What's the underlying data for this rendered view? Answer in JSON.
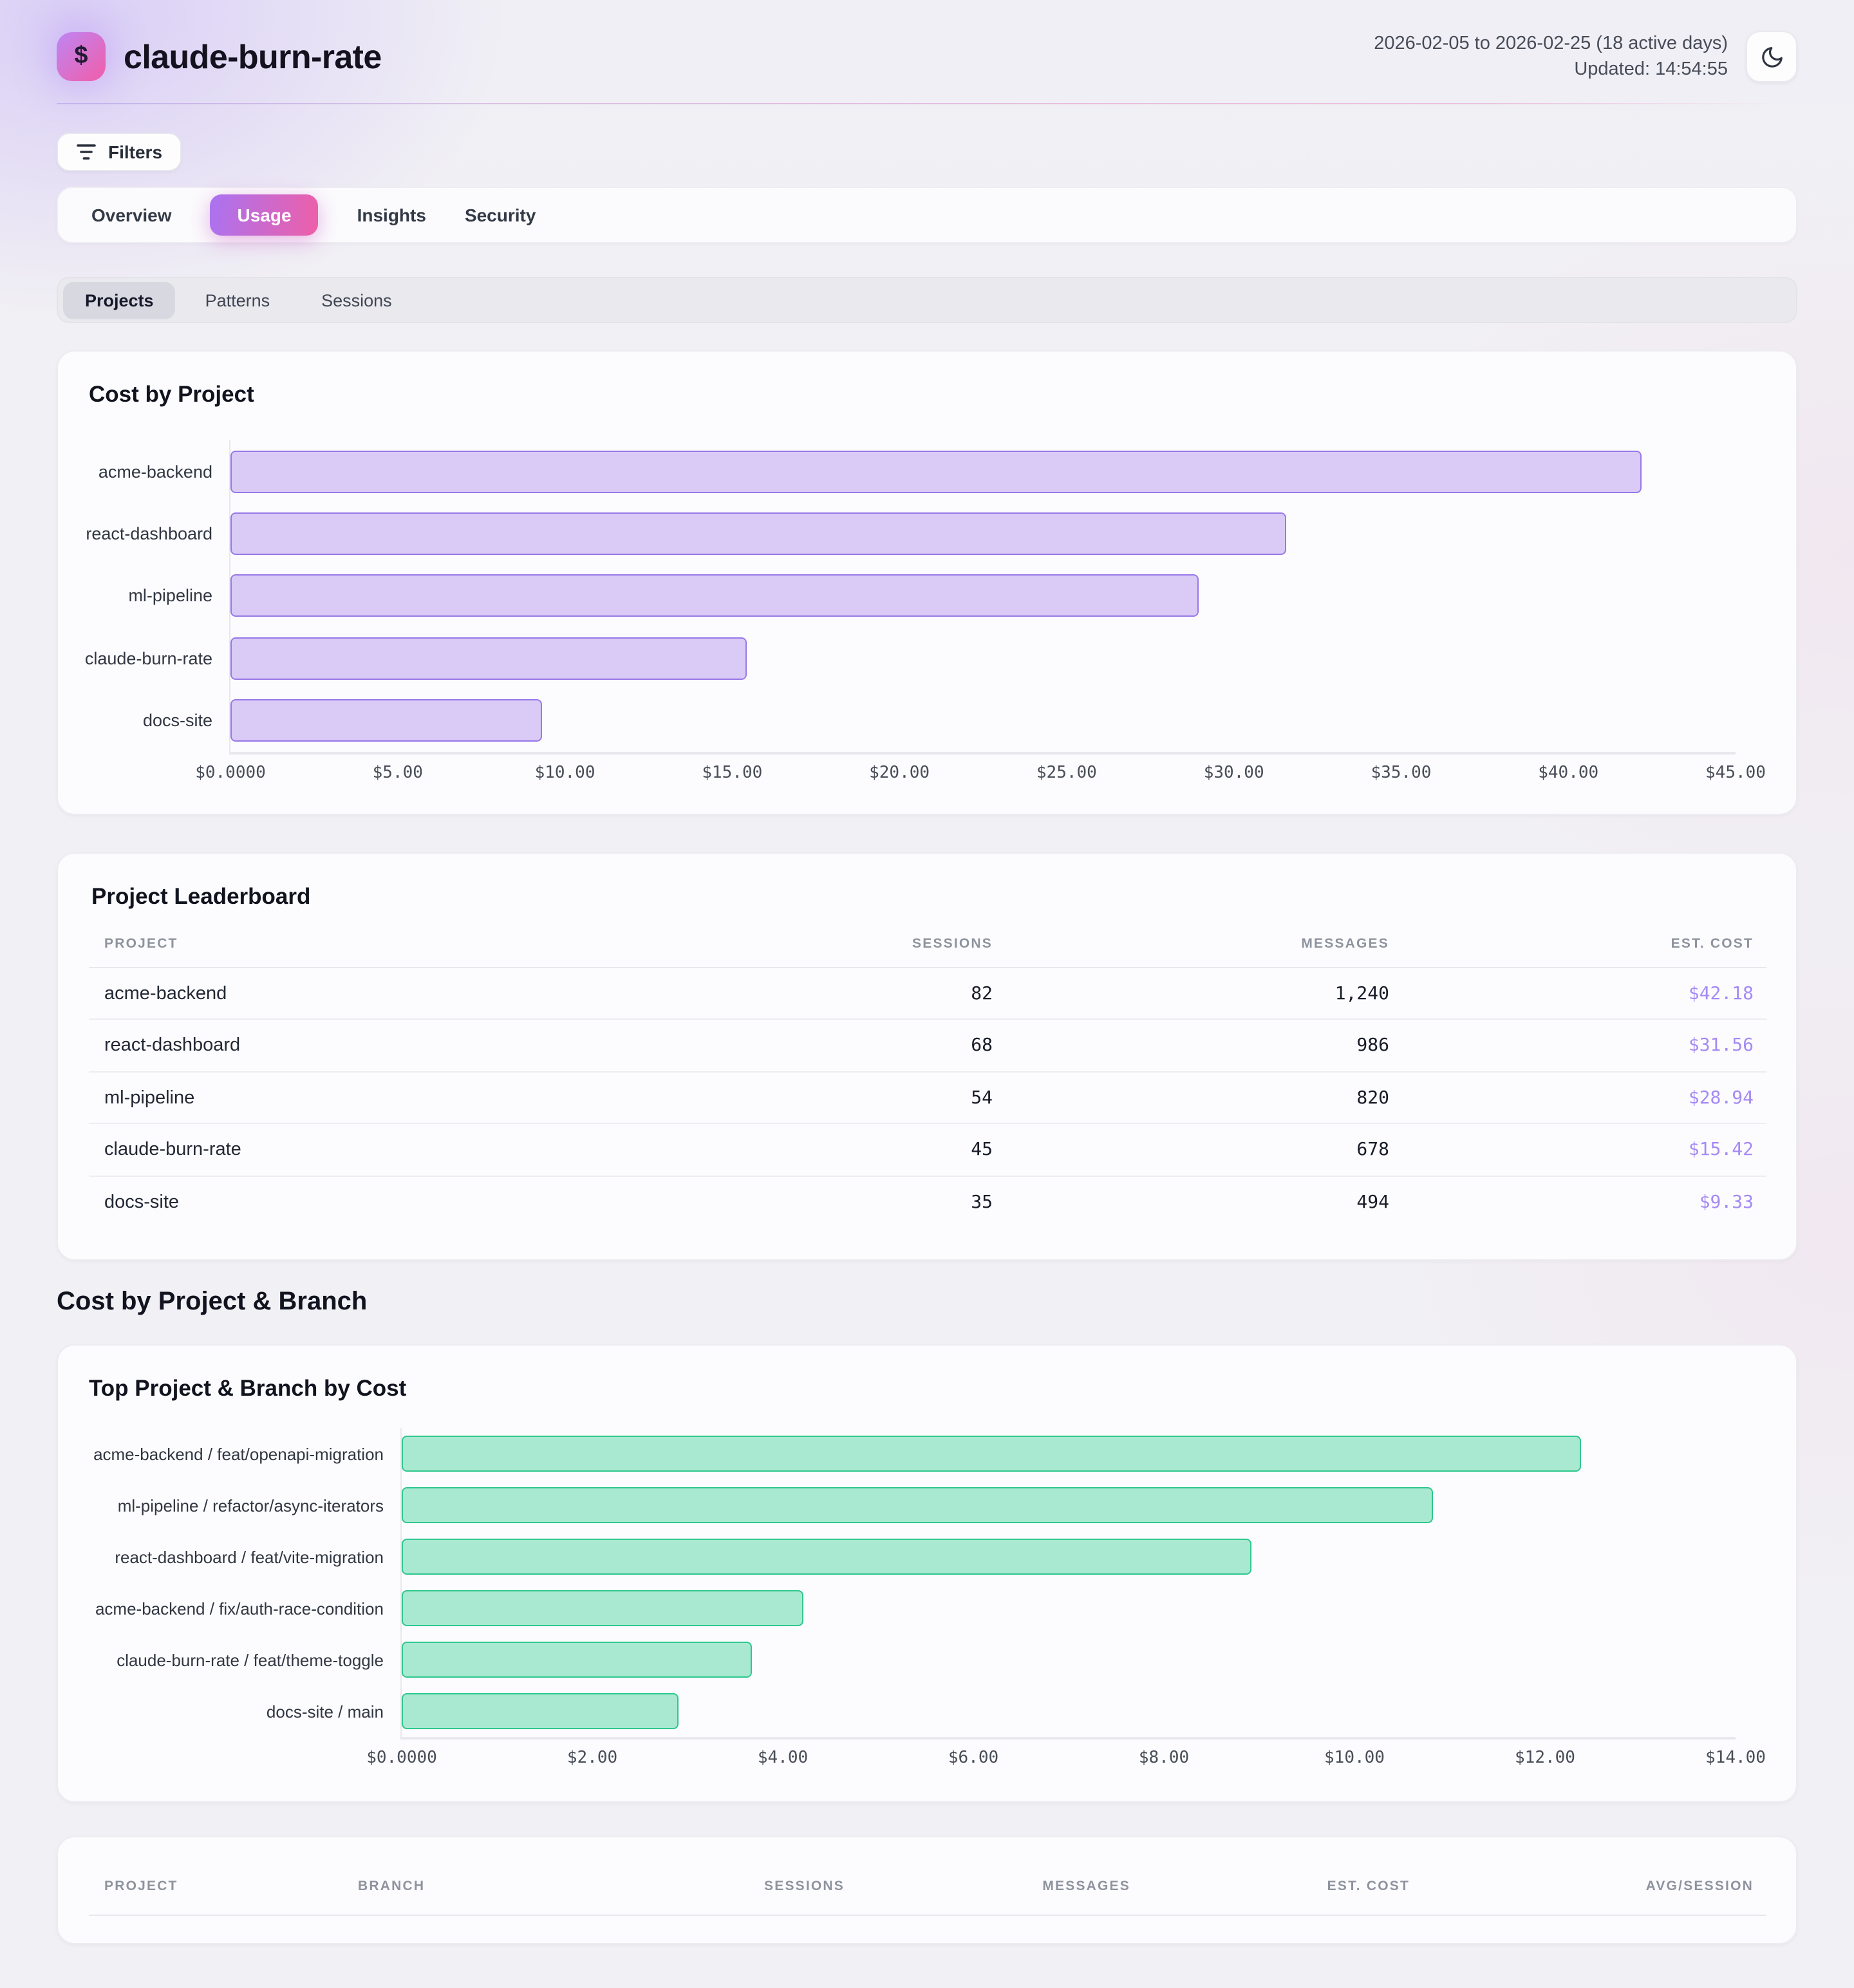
{
  "header": {
    "logo_glyph": "$",
    "title": "claude-burn-rate",
    "date_range": "2026-02-05 to 2026-02-25 (18 active days)",
    "updated": "Updated: 14:54:55"
  },
  "toolbar": {
    "filters_label": "Filters"
  },
  "tabs": {
    "items": [
      {
        "label": "Overview",
        "active": false
      },
      {
        "label": "Usage",
        "active": true
      },
      {
        "label": "Insights",
        "active": false
      },
      {
        "label": "Security",
        "active": false
      }
    ]
  },
  "subtabs": {
    "items": [
      {
        "label": "Projects",
        "active": true
      },
      {
        "label": "Patterns",
        "active": false
      },
      {
        "label": "Sessions",
        "active": false
      }
    ]
  },
  "section_heading": "Cost by Project & Branch",
  "chart_data": [
    {
      "type": "bar",
      "orientation": "horizontal",
      "title": "Cost by Project",
      "categories": [
        "acme-backend",
        "react-dashboard",
        "ml-pipeline",
        "claude-burn-rate",
        "docs-site"
      ],
      "values": [
        42.18,
        31.56,
        28.94,
        15.42,
        9.33
      ],
      "xlim": [
        0,
        45
      ],
      "tick_labels": [
        "$0.0000",
        "$5.00",
        "$10.00",
        "$15.00",
        "$20.00",
        "$25.00",
        "$30.00",
        "$35.00",
        "$40.00",
        "$45.00"
      ],
      "bar_color": "#d9cbf6",
      "bar_border": "#9878e8",
      "legend": false,
      "grid": false
    },
    {
      "type": "bar",
      "orientation": "horizontal",
      "title": "Top Project & Branch by Cost",
      "categories": [
        "acme-backend / feat/openapi-migration",
        "ml-pipeline / refactor/async-iterators",
        "react-dashboard / feat/vite-migration",
        "acme-backend / fix/auth-race-condition",
        "claude-burn-rate / feat/theme-toggle",
        "docs-site / main"
      ],
      "values": [
        12.38,
        10.82,
        8.92,
        4.21,
        3.67,
        2.9
      ],
      "xlim": [
        0,
        14
      ],
      "tick_labels": [
        "$0.0000",
        "$2.00",
        "$4.00",
        "$6.00",
        "$8.00",
        "$10.00",
        "$12.00",
        "$14.00"
      ],
      "bar_color": "#a9e9d2",
      "bar_border": "#2fc78d",
      "legend": false,
      "grid": false
    }
  ],
  "leaderboard": {
    "title": "Project Leaderboard",
    "columns": [
      "PROJECT",
      "SESSIONS",
      "MESSAGES",
      "EST. COST"
    ],
    "rows": [
      [
        "acme-backend",
        "82",
        "1,240",
        "$42.18"
      ],
      [
        "react-dashboard",
        "68",
        "986",
        "$31.56"
      ],
      [
        "ml-pipeline",
        "54",
        "820",
        "$28.94"
      ],
      [
        "claude-burn-rate",
        "45",
        "678",
        "$15.42"
      ],
      [
        "docs-site",
        "35",
        "494",
        "$9.33"
      ]
    ]
  },
  "branch_table": {
    "columns": [
      "PROJECT",
      "BRANCH",
      "SESSIONS",
      "MESSAGES",
      "EST. COST",
      "AVG/SESSION"
    ],
    "rows": []
  }
}
